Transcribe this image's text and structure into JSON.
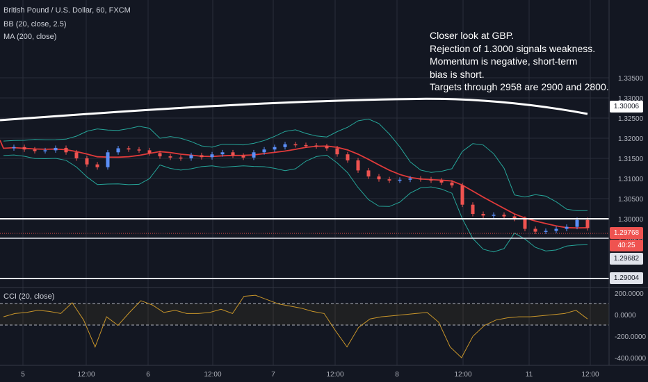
{
  "header": {
    "symbol_title": "British Pound / U.S. Dollar, 60, FXCM",
    "bb_label": "BB (20, close, 2.5)",
    "ma_label": "MA (200, close)"
  },
  "annotation": {
    "line1": "Closer look at GBP.",
    "line2": "Rejection of 1.3000 signals weakness.",
    "line3": "Momentum is negative, short-term",
    "line4": "bias is short.",
    "line5": "Targets through 2958 are 2900 and 2800."
  },
  "price_axis": {
    "ticks": [
      "1.33500",
      "1.33000",
      "1.32500",
      "1.32000",
      "1.31500",
      "1.31000",
      "1.30500",
      "1.30000",
      "1.29500"
    ]
  },
  "price_tags": {
    "ma_value": "1.30006",
    "last_price": "1.29768",
    "countdown": "40:25",
    "level_a": "1.29682",
    "level_b": "1.29004"
  },
  "cci": {
    "label": "CCI (20, close)",
    "ticks": [
      "200.0000",
      "0.0000",
      "-200.0000",
      "-400.0000"
    ]
  },
  "time_axis": {
    "ticks": [
      "5",
      "12:00",
      "6",
      "12:00",
      "7",
      "12:00",
      "8",
      "12:00",
      "11",
      "12:00"
    ]
  },
  "colors": {
    "background": "#131722",
    "grid": "#2a2e39",
    "up_candle": "#5b8ff9",
    "down_candle": "#ef5350",
    "ma_line": "#ffffff",
    "bb_basis": "#e03a3a",
    "bb_bands": "#26a69a",
    "cci_line": "#c8952a",
    "last_price_tag": "#ef5350",
    "level_tag": "#e0e3eb"
  },
  "chart_data": {
    "type": "candlestick",
    "x_axis": [
      "5",
      "12:00",
      "6",
      "12:00",
      "7",
      "12:00",
      "8",
      "12:00",
      "11",
      "12:00"
    ],
    "horizontal_levels": [
      1.3,
      1.29682,
      1.29004
    ],
    "last_price": 1.29768,
    "ma200_last": 1.30006,
    "price_close_path": [
      1.3175,
      1.3178,
      1.3172,
      1.3168,
      1.317,
      1.3176,
      1.3165,
      1.315,
      1.3135,
      1.3128,
      1.3165,
      1.3175,
      1.3172,
      1.317,
      1.3163,
      1.3155,
      1.3152,
      1.315,
      1.3158,
      1.3153,
      1.316,
      1.3165,
      1.3157,
      1.3152,
      1.3165,
      1.3172,
      1.3178,
      1.3185,
      1.3183,
      1.3182,
      1.318,
      1.3175,
      1.316,
      1.3145,
      1.312,
      1.3105,
      1.3098,
      1.3095,
      1.3097,
      1.31,
      1.3098,
      1.3095,
      1.309,
      1.3083,
      1.3035,
      1.3012,
      1.3008,
      1.301,
      1.3006,
      1.3,
      1.2975,
      1.2968,
      1.297,
      1.2975,
      1.298,
      1.2997,
      1.2977
    ],
    "cci": [
      -20,
      10,
      20,
      40,
      30,
      10,
      110,
      -50,
      -300,
      -20,
      -100,
      20,
      130,
      90,
      20,
      40,
      10,
      10,
      20,
      50,
      10,
      170,
      180,
      140,
      100,
      80,
      60,
      30,
      10,
      -150,
      -300,
      -120,
      -40,
      -20,
      -10,
      0,
      10,
      20,
      -70,
      -300,
      -400,
      -200,
      -100,
      -50,
      -30,
      -20,
      -20,
      -10,
      0,
      10,
      40,
      -40
    ]
  }
}
